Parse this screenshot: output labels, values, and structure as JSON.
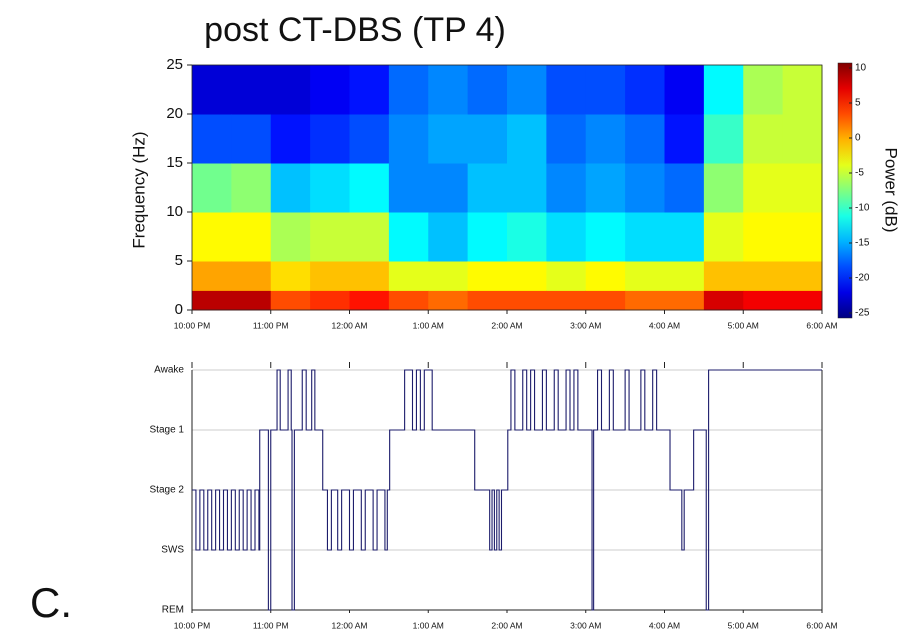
{
  "panel_label": "C.",
  "chart_data": [
    {
      "type": "heatmap",
      "title": "post CT-DBS (TP 4)",
      "y_label": "Frequency (Hz)",
      "colorbar_label": "Power (dB)",
      "ylim": [
        0,
        25
      ],
      "yticks": [
        0,
        5,
        10,
        15,
        20,
        25
      ],
      "xlim": [
        22,
        30
      ],
      "xticks": [
        {
          "value": 22,
          "label": "10:00 PM"
        },
        {
          "value": 23,
          "label": "11:00 PM"
        },
        {
          "value": 24,
          "label": "12:00 AM"
        },
        {
          "value": 25,
          "label": "1:00 AM"
        },
        {
          "value": 26,
          "label": "2:00 AM"
        },
        {
          "value": 27,
          "label": "3:00 AM"
        },
        {
          "value": 28,
          "label": "4:00 AM"
        },
        {
          "value": 29,
          "label": "5:00 AM"
        },
        {
          "value": 30,
          "label": "6:00 AM"
        }
      ],
      "x_bins": [
        22,
        22.5,
        23,
        23.5,
        24,
        24.5,
        25,
        25.5,
        26,
        26.5,
        27,
        27.5,
        28,
        28.5,
        29,
        29.5,
        30
      ],
      "y_bins": [
        0,
        2,
        5,
        10,
        15,
        20,
        25
      ],
      "values": [
        [
          8,
          0,
          -3,
          -8,
          -18,
          -22
        ],
        [
          8,
          0,
          -3,
          -7,
          -18,
          -22
        ],
        [
          3,
          -2,
          -6,
          -14,
          -20,
          -22
        ],
        [
          4,
          -1,
          -5,
          -13,
          -19,
          -21
        ],
        [
          5,
          -1,
          -5,
          -12,
          -18,
          -20
        ],
        [
          3,
          -4,
          -12,
          -16,
          -16,
          -17
        ],
        [
          2,
          -4,
          -14,
          -16,
          -15,
          -16
        ],
        [
          3,
          -3,
          -12,
          -14,
          -15,
          -17
        ],
        [
          3,
          -3,
          -11,
          -14,
          -14,
          -16
        ],
        [
          3,
          -4,
          -13,
          -16,
          -17,
          -18
        ],
        [
          3,
          -3,
          -12,
          -15,
          -16,
          -18
        ],
        [
          2,
          -4,
          -13,
          -16,
          -17,
          -19
        ],
        [
          2,
          -4,
          -13,
          -17,
          -20,
          -21
        ],
        [
          7,
          -1,
          -4,
          -7,
          -10,
          -12
        ],
        [
          6,
          -1,
          -3,
          -4,
          -5,
          -6
        ],
        [
          6,
          -1,
          -3,
          -4,
          -5,
          -5
        ]
      ],
      "clim": [
        -25,
        10
      ],
      "cticks": [
        10,
        5,
        0,
        -5,
        -10,
        -15,
        -20,
        -25
      ],
      "colormap": "jet"
    },
    {
      "type": "step",
      "color": "#1c1c6b",
      "grid": true,
      "ylim": [
        0,
        4
      ],
      "yticks": [
        {
          "value": 0,
          "label": "REM"
        },
        {
          "value": 1,
          "label": "SWS"
        },
        {
          "value": 2,
          "label": "Stage 2"
        },
        {
          "value": 3,
          "label": "Stage 1"
        },
        {
          "value": 4,
          "label": "Awake"
        }
      ],
      "xlim": [
        22,
        30
      ],
      "xticks": [
        {
          "value": 22,
          "label": "10:00 PM"
        },
        {
          "value": 23,
          "label": "11:00 PM"
        },
        {
          "value": 24,
          "label": "12:00 AM"
        },
        {
          "value": 25,
          "label": "1:00 AM"
        },
        {
          "value": 26,
          "label": "2:00 AM"
        },
        {
          "value": 27,
          "label": "3:00 AM"
        },
        {
          "value": 28,
          "label": "4:00 AM"
        },
        {
          "value": 29,
          "label": "5:00 AM"
        },
        {
          "value": 30,
          "label": "6:00 AM"
        }
      ],
      "x": [
        22,
        22.05,
        22.1,
        22.15,
        22.2,
        22.25,
        22.3,
        22.35,
        22.4,
        22.45,
        22.5,
        22.55,
        22.6,
        22.65,
        22.7,
        22.75,
        22.8,
        22.85,
        22.86,
        22.97,
        23.0,
        23.08,
        23.12,
        23.22,
        23.26,
        23.27,
        23.3,
        23.4,
        23.45,
        23.52,
        23.56,
        23.66,
        23.72,
        23.77,
        23.85,
        23.9,
        24.0,
        24.05,
        24.15,
        24.2,
        24.3,
        24.35,
        24.45,
        24.48,
        24.51,
        24.7,
        24.8,
        24.85,
        24.9,
        24.95,
        25.05,
        25.59,
        25.78,
        25.81,
        25.84,
        25.87,
        25.9,
        25.93,
        26.01,
        26.05,
        26.1,
        26.2,
        26.25,
        26.3,
        26.35,
        26.45,
        26.5,
        26.6,
        26.65,
        26.75,
        26.8,
        26.85,
        26.9,
        27.08,
        27.1,
        27.15,
        27.2,
        27.3,
        27.35,
        27.5,
        27.55,
        27.7,
        27.75,
        27.85,
        27.9,
        28.07,
        28.22,
        28.25,
        28.37,
        28.53,
        28.56,
        30
      ],
      "values": [
        2,
        1,
        2,
        1,
        2,
        1,
        2,
        1,
        2,
        1,
        2,
        1,
        2,
        1,
        2,
        1,
        2,
        1,
        3,
        0,
        3,
        4,
        3,
        4,
        3,
        0,
        3,
        4,
        3,
        4,
        3,
        2,
        1,
        2,
        1,
        2,
        1,
        2,
        1,
        2,
        1,
        2,
        1,
        2,
        3,
        4,
        3,
        4,
        3,
        4,
        3,
        2,
        1,
        2,
        1,
        2,
        1,
        2,
        3,
        4,
        3,
        4,
        3,
        4,
        3,
        4,
        3,
        4,
        3,
        4,
        3,
        4,
        3,
        0,
        3,
        4,
        3,
        4,
        3,
        4,
        3,
        4,
        3,
        4,
        3,
        2,
        1,
        2,
        3,
        0,
        4,
        4
      ]
    }
  ]
}
